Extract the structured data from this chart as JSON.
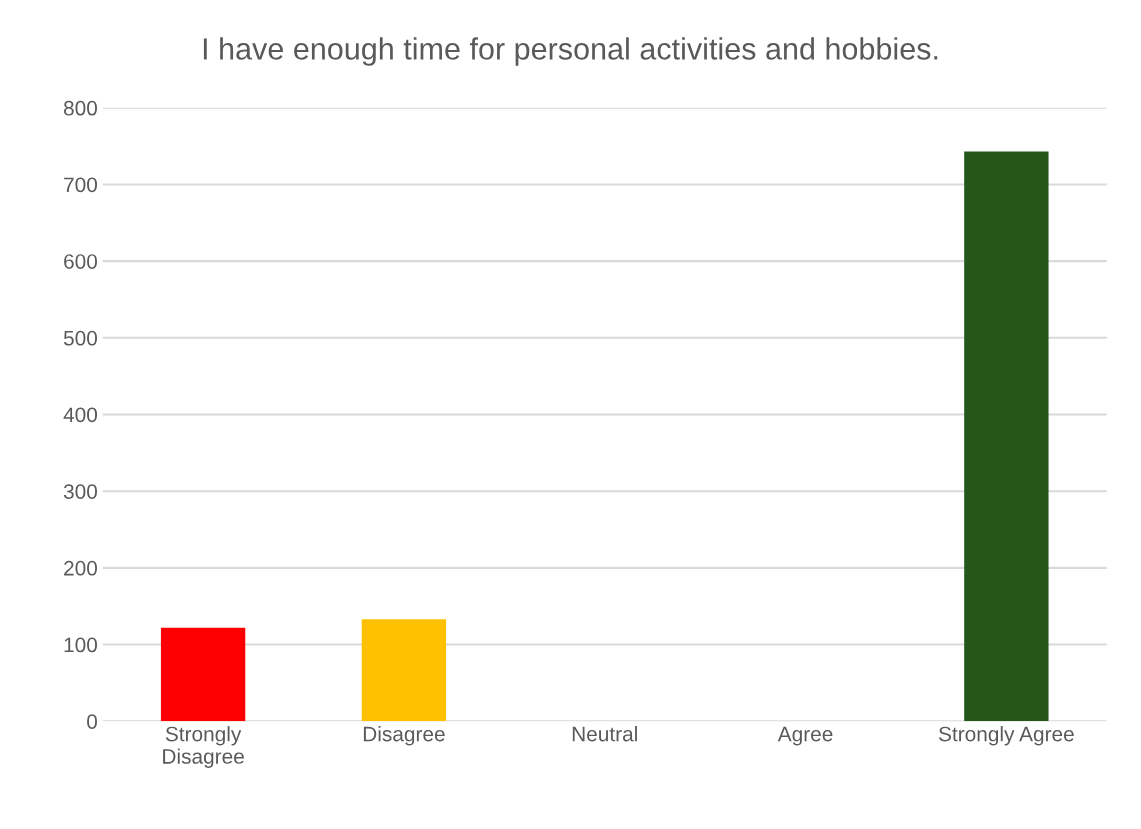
{
  "chart_data": {
    "type": "bar",
    "title": "I have enough time for personal activities and hobbies.",
    "categories": [
      "Strongly\nDisagree",
      "Disagree",
      "Neutral",
      "Agree",
      "Strongly Agree"
    ],
    "values": [
      122,
      133,
      0,
      0,
      743
    ],
    "colors": [
      "#ff0000",
      "#ffc000",
      "#318ab0",
      "#6aa84f",
      "#25561a"
    ],
    "ylim": [
      0,
      800
    ],
    "yticks": [
      0,
      100,
      200,
      300,
      400,
      500,
      600,
      700,
      800
    ],
    "grid": "y"
  }
}
